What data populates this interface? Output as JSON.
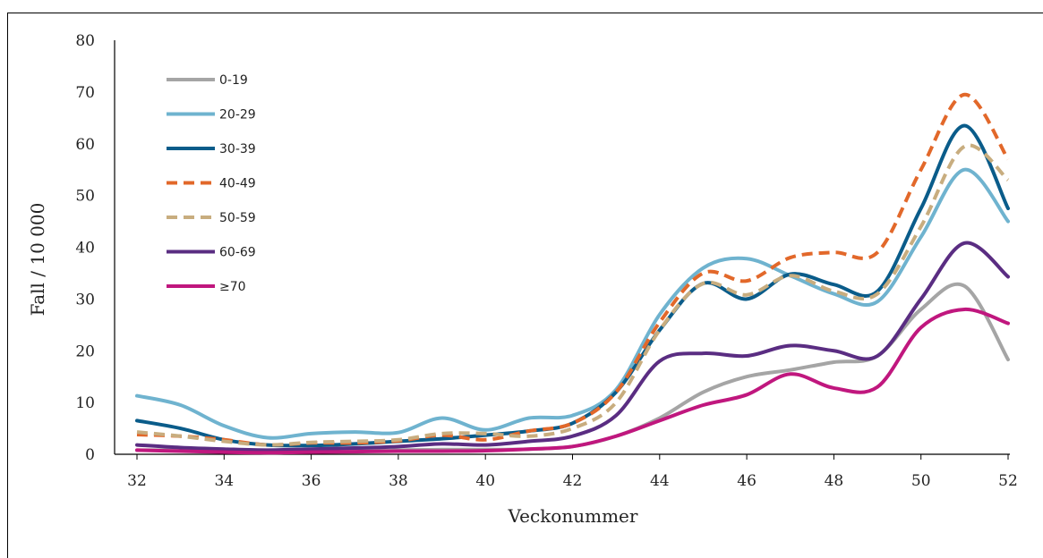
{
  "chart_data": {
    "type": "line",
    "xlabel": "Veckonummer",
    "ylabel": "Fall / 10 000",
    "xlim": [
      32,
      52
    ],
    "ylim": [
      0,
      80
    ],
    "x_ticks": [
      "32",
      "34",
      "36",
      "38",
      "40",
      "42",
      "44",
      "46",
      "48",
      "50",
      "52"
    ],
    "y_ticks": [
      "0",
      "10",
      "20",
      "30",
      "40",
      "50",
      "60",
      "70",
      "80"
    ],
    "grid": false,
    "legend_position": "top-left",
    "x": [
      32,
      33,
      34,
      35,
      36,
      37,
      38,
      39,
      40,
      41,
      42,
      43,
      44,
      45,
      46,
      47,
      48,
      49,
      50,
      51,
      52
    ],
    "series": [
      {
        "name": "0-19",
        "color": "#a5a5a5",
        "dash": "solid",
        "values": [
          0.8,
          0.8,
          0.7,
          0.3,
          0.5,
          0.6,
          0.8,
          0.9,
          0.9,
          1.0,
          1.5,
          3.5,
          7.0,
          12.0,
          15.0,
          16.3,
          17.8,
          19.0,
          28.0,
          32.5,
          18.3
        ]
      },
      {
        "name": "20-29",
        "color": "#6fb3cf",
        "dash": "solid",
        "values": [
          11.3,
          9.5,
          5.5,
          3.2,
          4.0,
          4.3,
          4.2,
          7.0,
          4.7,
          7.0,
          7.5,
          12.5,
          27.0,
          36.0,
          37.8,
          34.5,
          31.0,
          29.5,
          42.0,
          55.0,
          45.0
        ]
      },
      {
        "name": "30-39",
        "color": "#0a5c8a",
        "dash": "solid",
        "values": [
          6.5,
          5.0,
          2.8,
          1.8,
          1.7,
          2.0,
          2.5,
          3.0,
          3.7,
          4.5,
          6.0,
          12.0,
          24.0,
          33.0,
          30.0,
          34.8,
          32.8,
          31.5,
          47.5,
          63.5,
          47.5
        ]
      },
      {
        "name": "40-49",
        "color": "#e2682a",
        "dash": "dash",
        "values": [
          3.8,
          3.5,
          2.8,
          1.8,
          2.2,
          2.2,
          2.6,
          3.7,
          2.8,
          4.5,
          6.0,
          12.0,
          25.5,
          35.0,
          33.5,
          38.0,
          39.0,
          39.0,
          55.0,
          69.5,
          57.0
        ]
      },
      {
        "name": "50-59",
        "color": "#c8ad7f",
        "dash": "dash",
        "values": [
          4.3,
          3.5,
          2.5,
          1.8,
          2.3,
          2.5,
          2.8,
          4.0,
          4.0,
          3.5,
          5.0,
          10.0,
          24.0,
          33.0,
          30.8,
          34.5,
          31.5,
          31.0,
          44.0,
          59.5,
          53.0
        ]
      },
      {
        "name": "60-69",
        "color": "#5a2d82",
        "dash": "solid",
        "values": [
          1.8,
          1.3,
          1.0,
          0.8,
          1.0,
          1.2,
          1.5,
          2.0,
          1.8,
          2.5,
          3.5,
          7.5,
          18.0,
          19.5,
          19.0,
          21.0,
          20.0,
          19.0,
          30.0,
          40.8,
          34.3
        ]
      },
      {
        "name": "≥70",
        "color": "#c0177e",
        "dash": "solid",
        "values": [
          0.8,
          0.6,
          0.4,
          0.3,
          0.4,
          0.5,
          0.6,
          0.6,
          0.7,
          1.0,
          1.5,
          3.5,
          6.5,
          9.5,
          11.5,
          15.5,
          12.8,
          13.0,
          24.5,
          28.0,
          25.3
        ]
      }
    ]
  }
}
